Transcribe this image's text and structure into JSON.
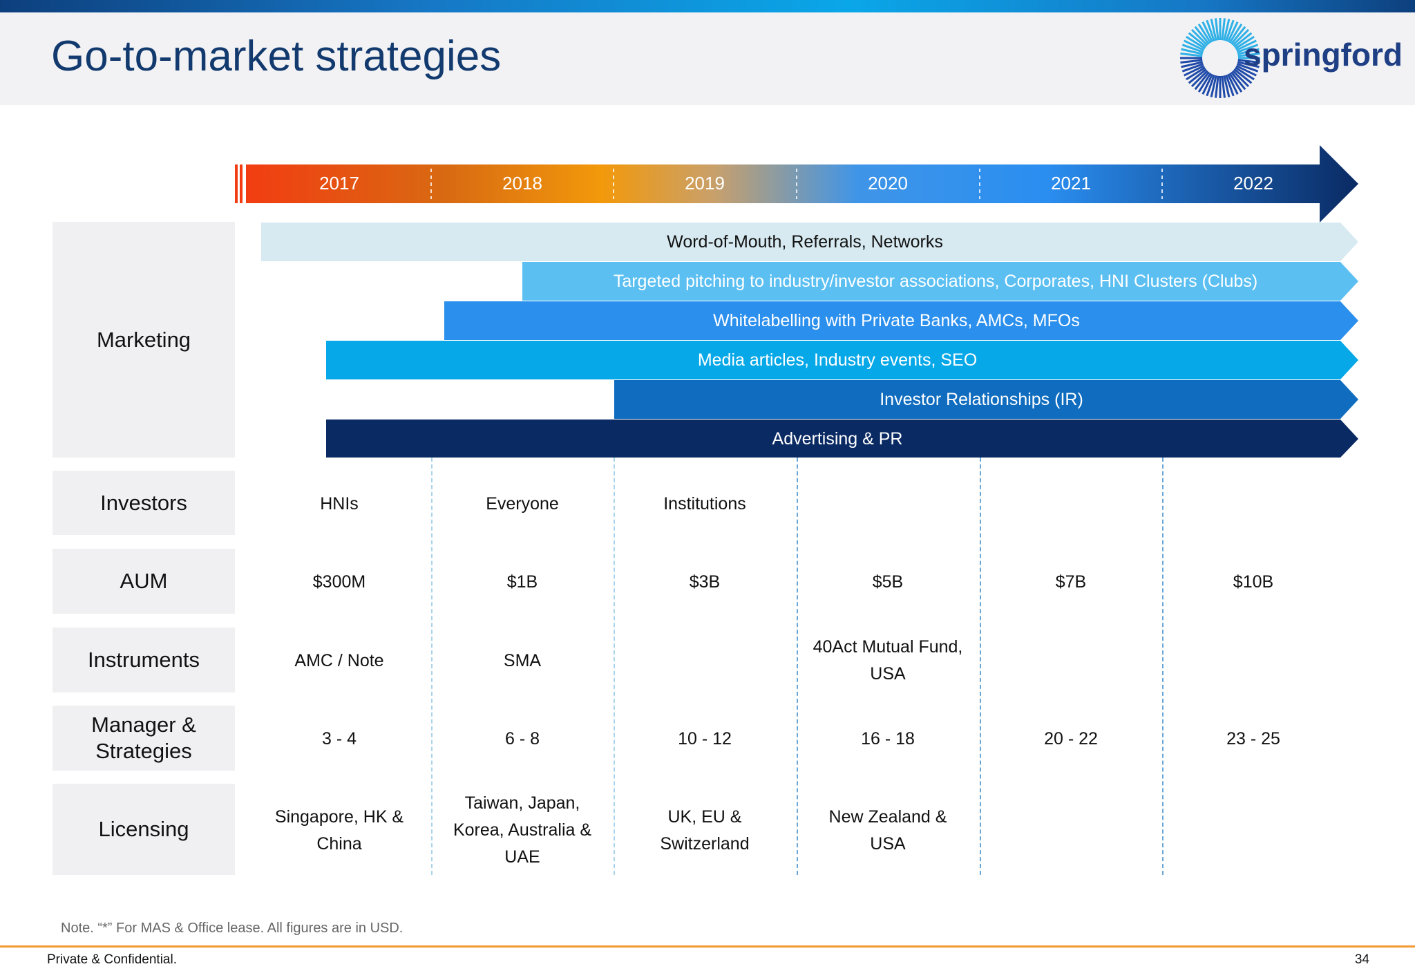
{
  "header": {
    "title": "Go-to-market strategies",
    "logo_text": "springford"
  },
  "timeline": {
    "years": [
      "2017",
      "2018",
      "2019",
      "2020",
      "2021",
      "2022"
    ]
  },
  "marketing": {
    "label": "Marketing",
    "bars": [
      {
        "label": "Word-of-Mouth, Referrals, Networks",
        "start_year": "2017",
        "color": "#d7eaf1",
        "text_color": "#111111"
      },
      {
        "label": "Targeted pitching to industry/investor associations, Corporates, HNI Clusters (Clubs)",
        "start_year": "2018",
        "color": "#5bbff2",
        "text_color": "#ffffff"
      },
      {
        "label": "Whitelabelling with Private Banks, AMCs, MFOs",
        "start_year": "2018",
        "color": "#2b8fed",
        "text_color": "#ffffff"
      },
      {
        "label": "Media articles, Industry events, SEO",
        "start_year": "2017",
        "color": "#06a8e8",
        "text_color": "#ffffff"
      },
      {
        "label": "Investor Relationships (IR)",
        "start_year": "2019",
        "color": "#0f6cbf",
        "text_color": "#ffffff"
      },
      {
        "label": "Advertising & PR",
        "start_year": "2017",
        "color": "#0a2a63",
        "text_color": "#ffffff"
      }
    ]
  },
  "rows": [
    {
      "label": "Investors",
      "cells": [
        "HNIs",
        "Everyone",
        "Institutions",
        "",
        "",
        ""
      ]
    },
    {
      "label": "AUM",
      "cells": [
        "$300M",
        "$1B",
        "$3B",
        "$5B",
        "$7B",
        "$10B"
      ]
    },
    {
      "label": "Instruments",
      "cells": [
        "AMC / Note",
        "SMA",
        "",
        "40Act Mutual Fund, USA",
        "",
        ""
      ]
    },
    {
      "label": "Manager & Strategies",
      "cells": [
        "3 - 4",
        "6 - 8",
        "10 - 12",
        "16 - 18",
        "20 - 22",
        "23 - 25"
      ]
    },
    {
      "label": "Licensing",
      "cells": [
        "Singapore, HK & China",
        "Taiwan, Japan, Korea, Australia & UAE",
        "UK, EU & Switzerland",
        "New Zealand & USA",
        "",
        ""
      ]
    }
  ],
  "footer": {
    "note": "Note. “*” For MAS & Office lease. All figures are in USD.",
    "left": "Private & Confidential.",
    "page": "34"
  }
}
